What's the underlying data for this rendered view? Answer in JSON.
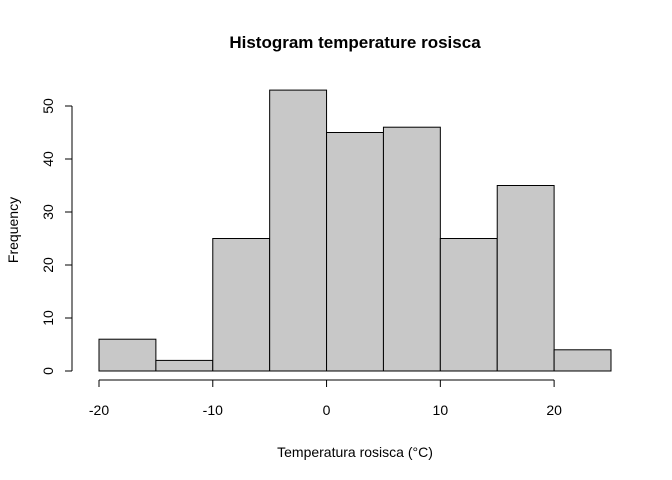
{
  "chart_data": {
    "type": "bar",
    "title": "Histogram temperature rosisca",
    "xlabel": "Temperatura rosisca (°C)",
    "ylabel": "Frequency",
    "bins": [
      {
        "from": -20,
        "to": -15,
        "count": 6
      },
      {
        "from": -15,
        "to": -10,
        "count": 2
      },
      {
        "from": -10,
        "to": -5,
        "count": 25
      },
      {
        "from": -5,
        "to": 0,
        "count": 53
      },
      {
        "from": 0,
        "to": 5,
        "count": 45
      },
      {
        "from": 5,
        "to": 10,
        "count": 46
      },
      {
        "from": 10,
        "to": 15,
        "count": 25
      },
      {
        "from": 15,
        "to": 20,
        "count": 35
      },
      {
        "from": 20,
        "to": 25,
        "count": 4
      }
    ],
    "xlim": [
      -20,
      25
    ],
    "ylim": [
      0,
      53
    ],
    "x_ticks": [
      -20,
      -10,
      0,
      10,
      20
    ],
    "y_ticks": [
      0,
      10,
      20,
      30,
      40,
      50
    ],
    "bar_color": "#c8c8c8",
    "grid": false
  }
}
